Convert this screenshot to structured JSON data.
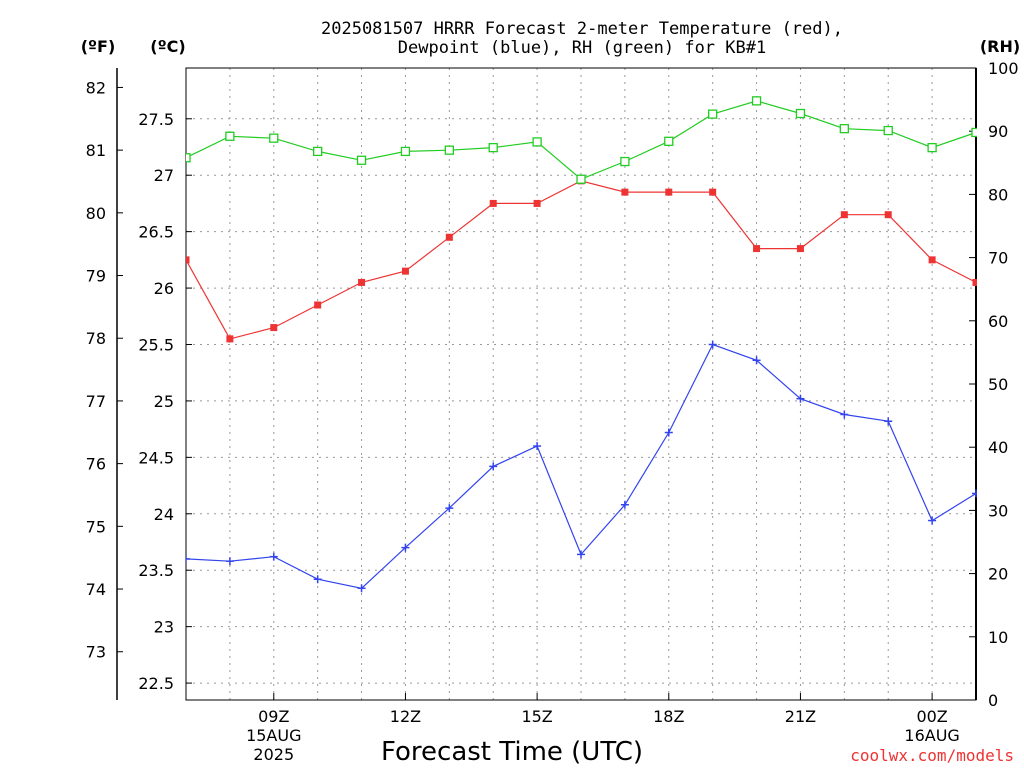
{
  "chart_data": {
    "type": "line",
    "title_lines": [
      "2025081507 HRRR Forecast 2-meter Temperature (red),",
      "Dewpoint (blue), RH (green) for KB#1"
    ],
    "xlabel": "Forecast Time (UTC)",
    "credit": "coolwx.com/models",
    "units": {
      "fahrenheit": "(ºF)",
      "celsius": "(ºC)",
      "rh": "(RH)"
    },
    "x_hours": [
      7,
      8,
      9,
      10,
      11,
      12,
      13,
      14,
      15,
      16,
      17,
      18,
      19,
      20,
      21,
      22,
      23,
      24,
      25
    ],
    "xlim": [
      7,
      25
    ],
    "x_ticks": [
      {
        "hour": 9,
        "lines": [
          "09Z",
          "15AUG",
          "2025"
        ]
      },
      {
        "hour": 12,
        "lines": [
          "12Z"
        ]
      },
      {
        "hour": 15,
        "lines": [
          "15Z"
        ]
      },
      {
        "hour": 18,
        "lines": [
          "18Z"
        ]
      },
      {
        "hour": 21,
        "lines": [
          "21Z"
        ]
      },
      {
        "hour": 24,
        "lines": [
          "00Z",
          "16AUG"
        ]
      }
    ],
    "celsius_axis": {
      "ylim": [
        22.35,
        27.95
      ],
      "ticks": [
        "22.5",
        "23",
        "23.5",
        "24",
        "24.5",
        "25",
        "25.5",
        "26",
        "26.5",
        "27",
        "27.5"
      ]
    },
    "fahrenheit_axis": {
      "ticks": [
        "73",
        "74",
        "75",
        "76",
        "77",
        "78",
        "79",
        "80",
        "81",
        "82"
      ]
    },
    "rh_axis": {
      "ylim": [
        0,
        100
      ],
      "ticks": [
        "0",
        "10",
        "20",
        "30",
        "40",
        "50",
        "60",
        "70",
        "80",
        "90",
        "100"
      ]
    },
    "grid": true,
    "series": [
      {
        "axis": "celsius",
        "color": "#ee3333",
        "marker": "filled-square",
        "values": [
          26.25,
          25.55,
          25.65,
          25.85,
          26.05,
          26.15,
          26.45,
          26.75,
          26.75,
          26.95,
          26.85,
          26.85,
          26.85,
          26.35,
          26.35,
          26.65,
          26.65,
          26.25,
          26.05
        ]
      },
      {
        "axis": "celsius",
        "color": "#3344ee",
        "marker": "plus",
        "values": [
          23.6,
          23.58,
          23.62,
          23.42,
          23.34,
          23.7,
          24.05,
          24.42,
          24.6,
          23.64,
          24.08,
          24.72,
          25.5,
          25.36,
          25.02,
          24.88,
          24.82,
          23.94,
          24.18
        ]
      },
      {
        "axis": "rh",
        "color": "#22cc22",
        "marker": "open-square",
        "values": [
          85.8,
          89.2,
          88.9,
          86.8,
          85.4,
          86.8,
          87.0,
          87.4,
          88.3,
          82.4,
          85.2,
          88.4,
          92.7,
          94.8,
          92.8,
          90.4,
          90.1,
          87.4,
          89.8
        ]
      }
    ]
  }
}
